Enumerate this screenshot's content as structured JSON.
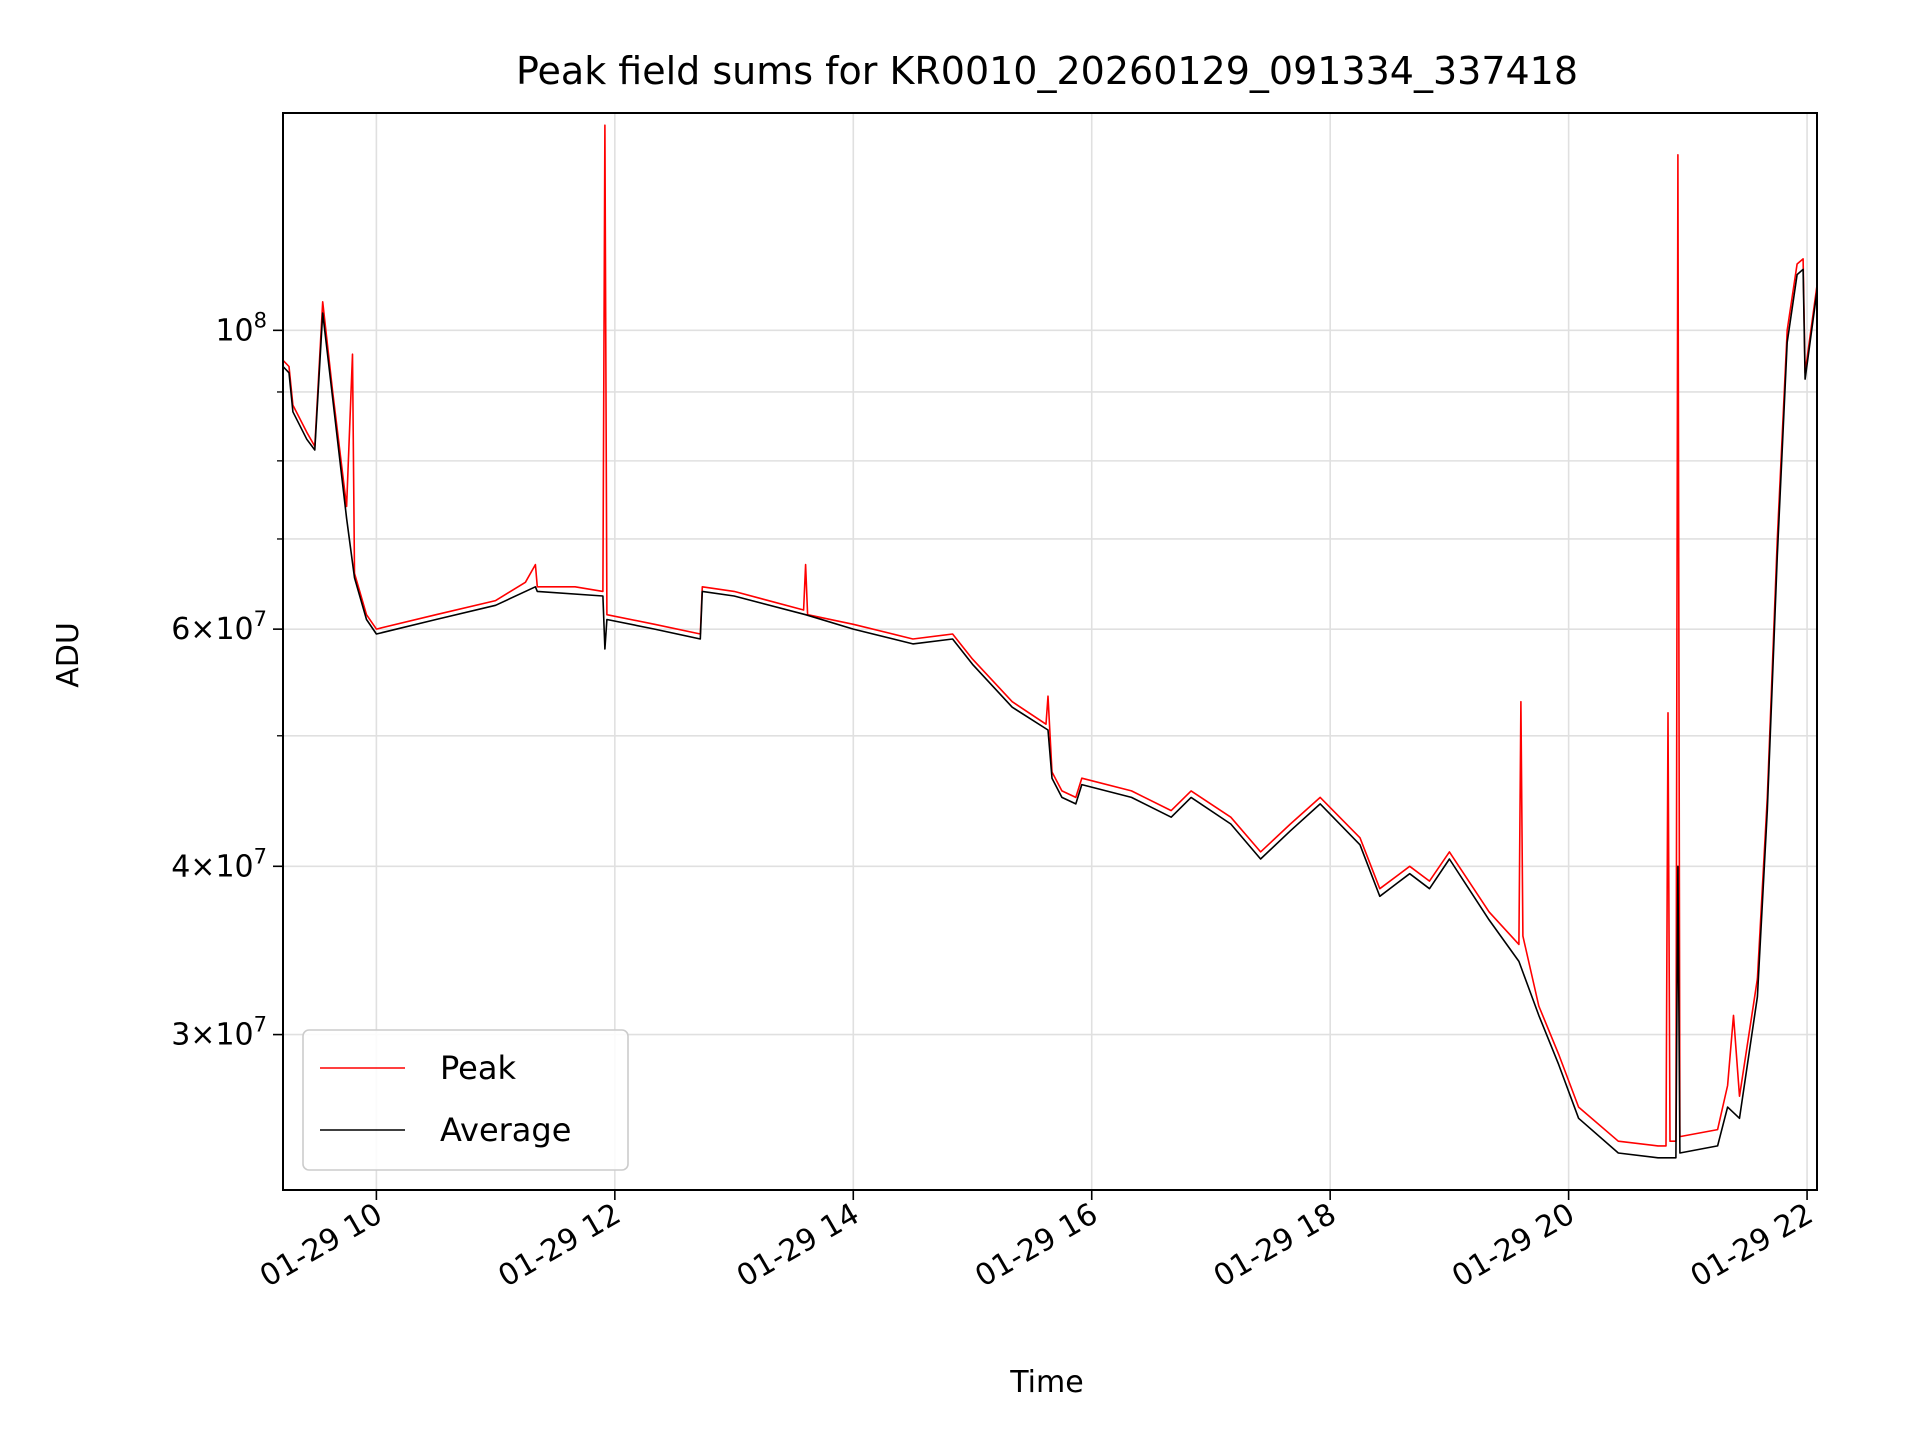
{
  "chart_data": {
    "type": "line",
    "title": "Peak field sums for KR0010_20260129_091334_337418",
    "xlabel": "Time",
    "ylabel": "ADU",
    "xscale": "time",
    "yscale": "log",
    "grid": true,
    "legend_position": "lower-left",
    "x_range": [
      "2026-01-29 09:13",
      "2026-01-29 22:05"
    ],
    "y_range": [
      23000000,
      145000000
    ],
    "x_ticks": [
      {
        "t": "2026-01-29 10:00",
        "label": "01-29 10"
      },
      {
        "t": "2026-01-29 12:00",
        "label": "01-29 12"
      },
      {
        "t": "2026-01-29 14:00",
        "label": "01-29 14"
      },
      {
        "t": "2026-01-29 16:00",
        "label": "01-29 16"
      },
      {
        "t": "2026-01-29 18:00",
        "label": "01-29 18"
      },
      {
        "t": "2026-01-29 20:00",
        "label": "01-29 20"
      },
      {
        "t": "2026-01-29 22:00",
        "label": "01-29 22"
      }
    ],
    "y_major_ticks": [
      {
        "value": 100000000,
        "label_base": "10",
        "label_exp": "8"
      },
      {
        "value": 60000000,
        "label_mant": "6",
        "label_base": "10",
        "label_exp": "7"
      },
      {
        "value": 40000000,
        "label_mant": "4",
        "label_base": "10",
        "label_exp": "7"
      },
      {
        "value": 30000000,
        "label_mant": "3",
        "label_base": "10",
        "label_exp": "7"
      }
    ],
    "y_minor_ticks": [
      50000000,
      70000000,
      80000000,
      90000000
    ],
    "series": [
      {
        "name": "Peak",
        "color": "#ff0000",
        "points": [
          [
            "2026-01-29 09:13",
            95000000
          ],
          [
            "2026-01-29 09:16",
            94000000
          ],
          [
            "2026-01-29 09:18",
            88000000
          ],
          [
            "2026-01-29 09:25",
            84000000
          ],
          [
            "2026-01-29 09:29",
            82000000
          ],
          [
            "2026-01-29 09:33",
            105000000
          ],
          [
            "2026-01-29 09:38",
            90000000
          ],
          [
            "2026-01-29 09:45",
            74000000
          ],
          [
            "2026-01-29 09:48",
            96000000
          ],
          [
            "2026-01-29 09:49",
            66000000
          ],
          [
            "2026-01-29 09:55",
            61500000
          ],
          [
            "2026-01-29 10:00",
            60000000
          ],
          [
            "2026-01-29 10:30",
            61500000
          ],
          [
            "2026-01-29 11:00",
            63000000
          ],
          [
            "2026-01-29 11:15",
            65000000
          ],
          [
            "2026-01-29 11:20",
            67000000
          ],
          [
            "2026-01-29 11:21",
            64500000
          ],
          [
            "2026-01-29 11:40",
            64500000
          ],
          [
            "2026-01-29 11:54",
            64000000
          ],
          [
            "2026-01-29 11:55",
            142000000
          ],
          [
            "2026-01-29 11:56",
            61500000
          ],
          [
            "2026-01-29 12:20",
            60500000
          ],
          [
            "2026-01-29 12:43",
            59500000
          ],
          [
            "2026-01-29 12:44",
            64500000
          ],
          [
            "2026-01-29 13:00",
            64000000
          ],
          [
            "2026-01-29 13:35",
            62000000
          ],
          [
            "2026-01-29 13:36",
            67000000
          ],
          [
            "2026-01-29 13:37",
            61500000
          ],
          [
            "2026-01-29 14:00",
            60500000
          ],
          [
            "2026-01-29 14:30",
            59000000
          ],
          [
            "2026-01-29 14:50",
            59500000
          ],
          [
            "2026-01-29 15:00",
            57000000
          ],
          [
            "2026-01-29 15:20",
            53000000
          ],
          [
            "2026-01-29 15:37",
            51000000
          ],
          [
            "2026-01-29 15:38",
            53500000
          ],
          [
            "2026-01-29 15:40",
            47000000
          ],
          [
            "2026-01-29 15:45",
            45500000
          ],
          [
            "2026-01-29 15:52",
            45000000
          ],
          [
            "2026-01-29 15:55",
            46500000
          ],
          [
            "2026-01-29 16:20",
            45500000
          ],
          [
            "2026-01-29 16:40",
            44000000
          ],
          [
            "2026-01-29 16:50",
            45500000
          ],
          [
            "2026-01-29 17:10",
            43500000
          ],
          [
            "2026-01-29 17:25",
            41000000
          ],
          [
            "2026-01-29 17:40",
            43000000
          ],
          [
            "2026-01-29 17:55",
            45000000
          ],
          [
            "2026-01-29 18:15",
            42000000
          ],
          [
            "2026-01-29 18:25",
            38500000
          ],
          [
            "2026-01-29 18:40",
            40000000
          ],
          [
            "2026-01-29 18:50",
            39000000
          ],
          [
            "2026-01-29 19:00",
            41000000
          ],
          [
            "2026-01-29 19:20",
            37000000
          ],
          [
            "2026-01-29 19:35",
            35000000
          ],
          [
            "2026-01-29 19:36",
            53000000
          ],
          [
            "2026-01-29 19:37",
            35500000
          ],
          [
            "2026-01-29 19:45",
            31500000
          ],
          [
            "2026-01-29 19:55",
            29000000
          ],
          [
            "2026-01-29 20:05",
            26500000
          ],
          [
            "2026-01-29 20:25",
            25000000
          ],
          [
            "2026-01-29 20:45",
            24800000
          ],
          [
            "2026-01-29 20:49",
            24800000
          ],
          [
            "2026-01-29 20:50",
            52000000
          ],
          [
            "2026-01-29 20:51",
            25000000
          ],
          [
            "2026-01-29 20:54",
            25000000
          ],
          [
            "2026-01-29 20:55",
            135000000
          ],
          [
            "2026-01-29 20:56",
            25200000
          ],
          [
            "2026-01-29 21:15",
            25500000
          ],
          [
            "2026-01-29 21:20",
            27500000
          ],
          [
            "2026-01-29 21:23",
            31000000
          ],
          [
            "2026-01-29 21:26",
            27000000
          ],
          [
            "2026-01-29 21:35",
            33000000
          ],
          [
            "2026-01-29 21:40",
            45000000
          ],
          [
            "2026-01-29 21:45",
            70000000
          ],
          [
            "2026-01-29 21:50",
            100000000
          ],
          [
            "2026-01-29 21:55",
            112000000
          ],
          [
            "2026-01-29 21:58",
            113000000
          ],
          [
            "2026-01-29 21:59",
            93000000
          ],
          [
            "2026-01-29 22:05",
            108000000
          ]
        ]
      },
      {
        "name": "Average",
        "color": "#000000",
        "points": [
          [
            "2026-01-29 09:13",
            94000000
          ],
          [
            "2026-01-29 09:16",
            93000000
          ],
          [
            "2026-01-29 09:18",
            87000000
          ],
          [
            "2026-01-29 09:25",
            83000000
          ],
          [
            "2026-01-29 09:29",
            81500000
          ],
          [
            "2026-01-29 09:33",
            103000000
          ],
          [
            "2026-01-29 09:38",
            89000000
          ],
          [
            "2026-01-29 09:45",
            72500000
          ],
          [
            "2026-01-29 09:49",
            65500000
          ],
          [
            "2026-01-29 09:55",
            61000000
          ],
          [
            "2026-01-29 10:00",
            59500000
          ],
          [
            "2026-01-29 10:30",
            61000000
          ],
          [
            "2026-01-29 11:00",
            62500000
          ],
          [
            "2026-01-29 11:20",
            64500000
          ],
          [
            "2026-01-29 11:21",
            64000000
          ],
          [
            "2026-01-29 11:54",
            63500000
          ],
          [
            "2026-01-29 11:55",
            58000000
          ],
          [
            "2026-01-29 11:56",
            61000000
          ],
          [
            "2026-01-29 12:20",
            60000000
          ],
          [
            "2026-01-29 12:43",
            59000000
          ],
          [
            "2026-01-29 12:44",
            64000000
          ],
          [
            "2026-01-29 13:00",
            63500000
          ],
          [
            "2026-01-29 13:36",
            61500000
          ],
          [
            "2026-01-29 14:00",
            60000000
          ],
          [
            "2026-01-29 14:30",
            58500000
          ],
          [
            "2026-01-29 14:50",
            59000000
          ],
          [
            "2026-01-29 15:00",
            56500000
          ],
          [
            "2026-01-29 15:20",
            52500000
          ],
          [
            "2026-01-29 15:38",
            50500000
          ],
          [
            "2026-01-29 15:40",
            46500000
          ],
          [
            "2026-01-29 15:45",
            45000000
          ],
          [
            "2026-01-29 15:52",
            44500000
          ],
          [
            "2026-01-29 15:55",
            46000000
          ],
          [
            "2026-01-29 16:20",
            45000000
          ],
          [
            "2026-01-29 16:40",
            43500000
          ],
          [
            "2026-01-29 16:50",
            45000000
          ],
          [
            "2026-01-29 17:10",
            43000000
          ],
          [
            "2026-01-29 17:25",
            40500000
          ],
          [
            "2026-01-29 17:40",
            42500000
          ],
          [
            "2026-01-29 17:55",
            44500000
          ],
          [
            "2026-01-29 18:15",
            41500000
          ],
          [
            "2026-01-29 18:25",
            38000000
          ],
          [
            "2026-01-29 18:40",
            39500000
          ],
          [
            "2026-01-29 18:50",
            38500000
          ],
          [
            "2026-01-29 19:00",
            40500000
          ],
          [
            "2026-01-29 19:20",
            36500000
          ],
          [
            "2026-01-29 19:35",
            34000000
          ],
          [
            "2026-01-29 19:45",
            31000000
          ],
          [
            "2026-01-29 19:55",
            28500000
          ],
          [
            "2026-01-29 20:05",
            26000000
          ],
          [
            "2026-01-29 20:25",
            24500000
          ],
          [
            "2026-01-29 20:45",
            24300000
          ],
          [
            "2026-01-29 20:54",
            24300000
          ],
          [
            "2026-01-29 20:55",
            40000000
          ],
          [
            "2026-01-29 20:56",
            24500000
          ],
          [
            "2026-01-29 21:15",
            24800000
          ],
          [
            "2026-01-29 21:20",
            26500000
          ],
          [
            "2026-01-29 21:26",
            26000000
          ],
          [
            "2026-01-29 21:35",
            32000000
          ],
          [
            "2026-01-29 21:40",
            44000000
          ],
          [
            "2026-01-29 21:45",
            68000000
          ],
          [
            "2026-01-29 21:50",
            98000000
          ],
          [
            "2026-01-29 21:55",
            110000000
          ],
          [
            "2026-01-29 21:58",
            111000000
          ],
          [
            "2026-01-29 21:59",
            92000000
          ],
          [
            "2026-01-29 22:05",
            107000000
          ]
        ]
      }
    ]
  }
}
